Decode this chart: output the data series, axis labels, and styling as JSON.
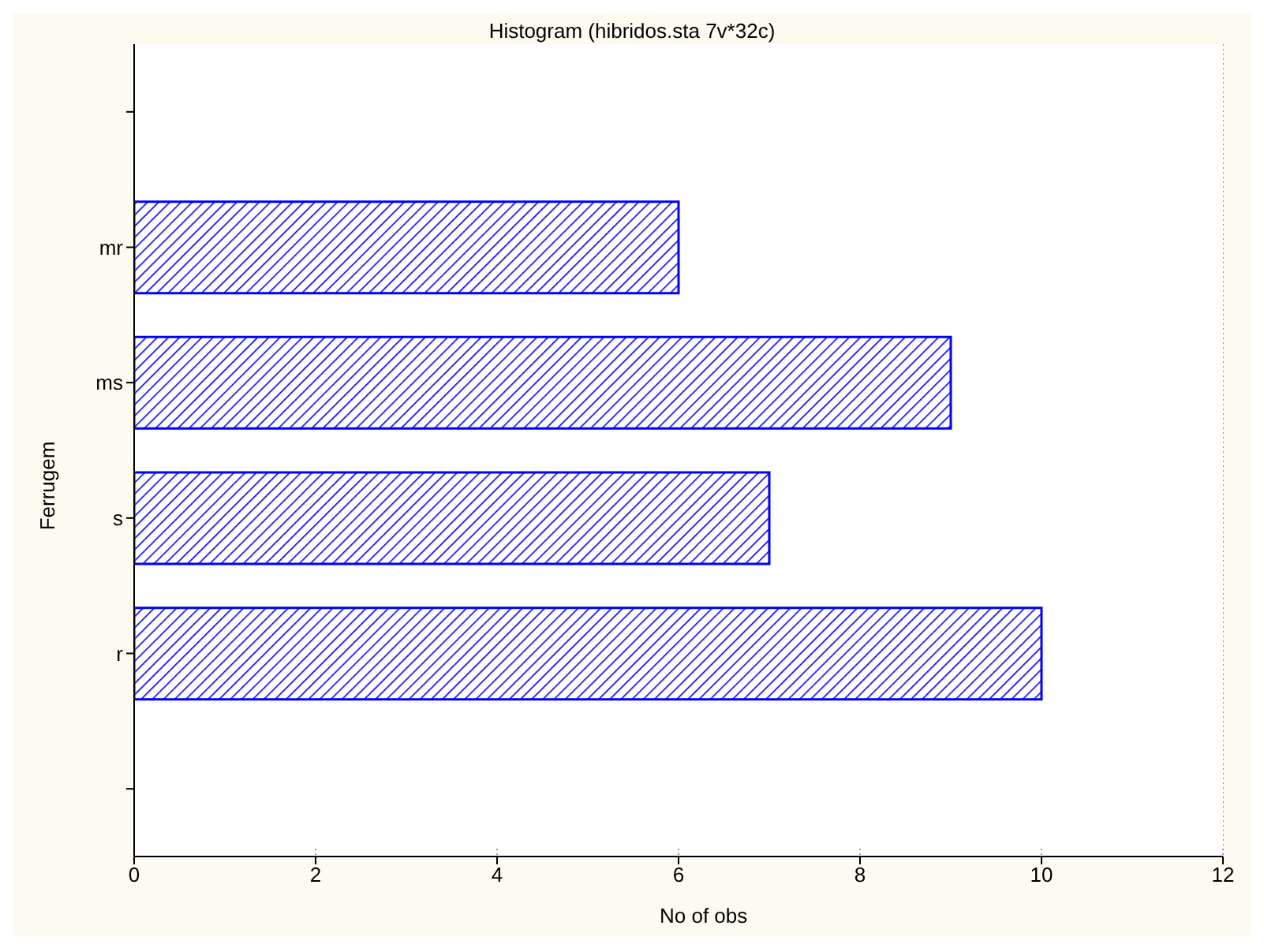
{
  "chart_data": {
    "type": "bar",
    "orientation": "horizontal",
    "title": "Histogram (hibridos.sta 7v*32c)",
    "xlabel": "No of obs",
    "ylabel": "Ferrugem",
    "categories": [
      null,
      "mr",
      "ms",
      "s",
      "r",
      null
    ],
    "values": [
      null,
      6,
      9,
      7,
      10,
      null
    ],
    "color": "#0000ff",
    "xlim": [
      0,
      12
    ],
    "xticks": [
      0,
      2,
      4,
      6,
      8,
      10,
      12
    ],
    "grid": "x"
  }
}
